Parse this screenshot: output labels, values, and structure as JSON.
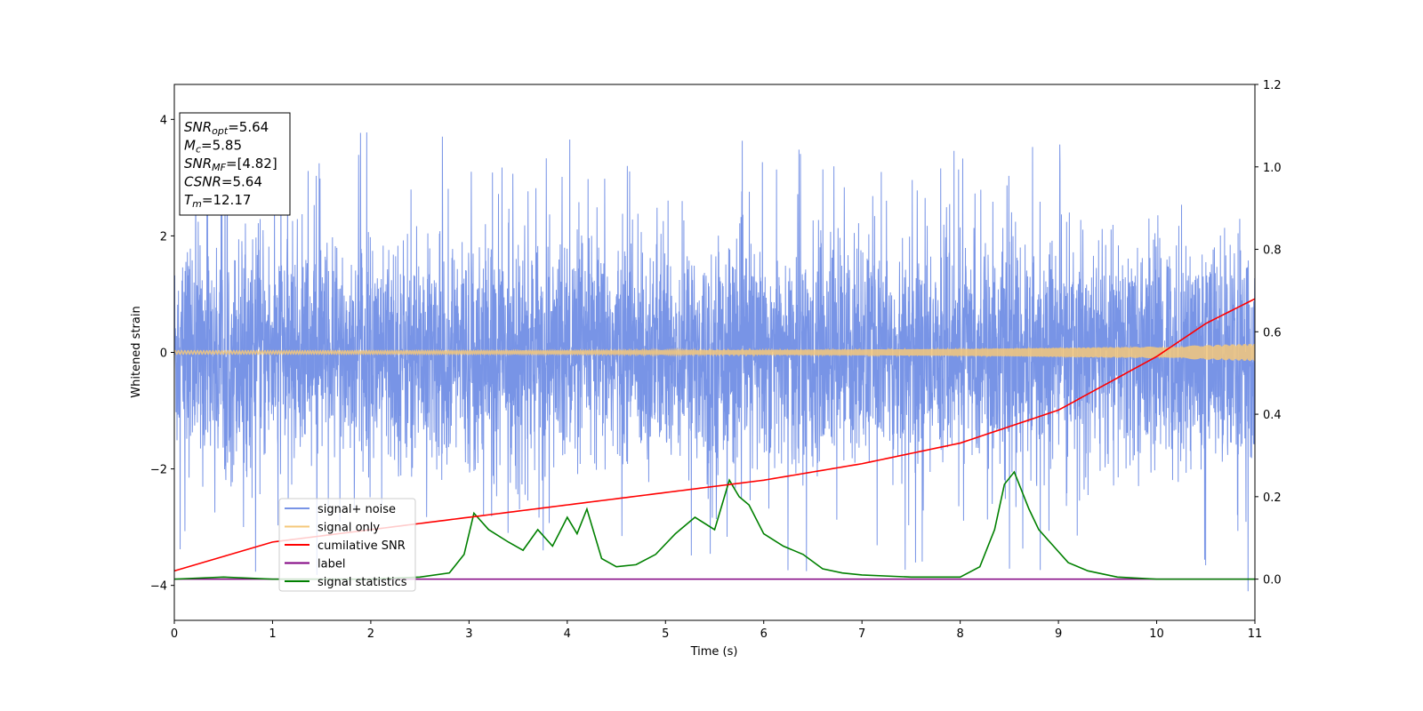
{
  "chart_data": {
    "type": "line",
    "xlabel": "Time (s)",
    "ylabel": "Whitened strain",
    "xlim": [
      0,
      11
    ],
    "ylim": [
      -4.6,
      4.6
    ],
    "y2lim": [
      -0.1,
      1.2
    ],
    "x_ticks": [
      "0",
      "1",
      "2",
      "3",
      "4",
      "5",
      "6",
      "7",
      "8",
      "9",
      "10",
      "11"
    ],
    "y_ticks": [
      "−4",
      "−2",
      "0",
      "2",
      "4"
    ],
    "y2_ticks": [
      "0.0",
      "0.2",
      "0.4",
      "0.6",
      "0.8",
      "1.0",
      "1.2"
    ],
    "grid": false,
    "legend_position": "lower-left",
    "series": [
      {
        "name": "signal+ noise",
        "axis": "left",
        "color": "#7894e6",
        "description_values": {
          "typical_range": [
            -2.0,
            2.0
          ],
          "max": 4.2,
          "min": -4.1
        }
      },
      {
        "name": "signal only",
        "axis": "left",
        "color": "#f5c87a",
        "x": [
          0,
          2,
          4,
          6,
          8,
          9,
          10,
          11
        ],
        "amplitude": [
          0.03,
          0.03,
          0.03,
          0.04,
          0.06,
          0.08,
          0.1,
          0.15
        ]
      },
      {
        "name": "cumilative SNR",
        "axis": "right",
        "color": "#ff0000",
        "x": [
          0,
          1,
          2,
          3,
          4,
          5,
          6,
          7,
          8,
          9,
          10,
          10.5,
          11
        ],
        "y": [
          0.02,
          0.09,
          0.12,
          0.15,
          0.18,
          0.21,
          0.24,
          0.28,
          0.33,
          0.41,
          0.54,
          0.62,
          0.68
        ]
      },
      {
        "name": "label",
        "axis": "right",
        "color": "#800080",
        "x": [
          0,
          11
        ],
        "y": [
          0.0,
          0.0
        ]
      },
      {
        "name": "signal statistics",
        "axis": "right",
        "color": "#008000",
        "x": [
          0,
          0.5,
          1.0,
          1.5,
          2.0,
          2.5,
          2.8,
          2.95,
          3.05,
          3.2,
          3.4,
          3.55,
          3.7,
          3.85,
          4.0,
          4.1,
          4.2,
          4.35,
          4.5,
          4.7,
          4.9,
          5.1,
          5.3,
          5.5,
          5.65,
          5.75,
          5.85,
          6.0,
          6.2,
          6.4,
          6.6,
          6.8,
          7.0,
          7.5,
          8.0,
          8.2,
          8.35,
          8.45,
          8.55,
          8.7,
          8.8,
          8.95,
          9.1,
          9.3,
          9.6,
          10.0,
          10.5,
          11.0
        ],
        "y": [
          0.0,
          0.005,
          0.0,
          0.0,
          0.0,
          0.005,
          0.015,
          0.06,
          0.16,
          0.12,
          0.09,
          0.07,
          0.12,
          0.08,
          0.15,
          0.11,
          0.17,
          0.05,
          0.03,
          0.035,
          0.06,
          0.11,
          0.15,
          0.12,
          0.24,
          0.2,
          0.18,
          0.11,
          0.08,
          0.06,
          0.025,
          0.015,
          0.01,
          0.005,
          0.005,
          0.03,
          0.12,
          0.23,
          0.26,
          0.17,
          0.12,
          0.08,
          0.04,
          0.02,
          0.005,
          0.0,
          0.0,
          0.0
        ]
      }
    ],
    "annotations": [
      {
        "main": "SNR",
        "sub": "opt",
        "value": "=5.64"
      },
      {
        "main": "M",
        "sub": "c",
        "value": "=5.85"
      },
      {
        "main": "SNR",
        "sub": "MF",
        "value": "=[4.82]"
      },
      {
        "main": "CSNR",
        "sub": "",
        "value": "=5.64"
      },
      {
        "main": "T",
        "sub": "m",
        "value": "=12.17"
      }
    ]
  }
}
